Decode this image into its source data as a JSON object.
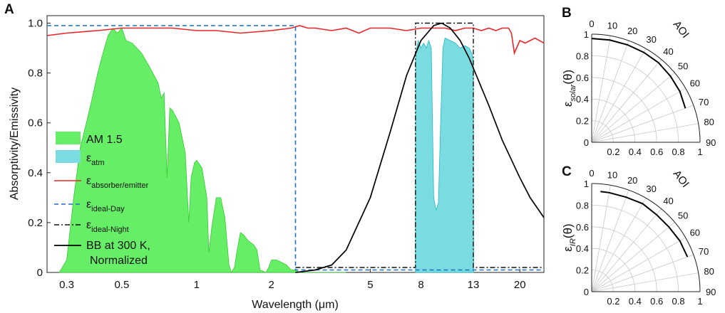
{
  "colors": {
    "am15": "#66ee66",
    "am15_edge": "#33cc33",
    "atm": "#7adbe0",
    "atm_edge": "#22bbc4",
    "absorber": "#e8262a",
    "ideal_day": "#1f6fbf",
    "ideal_night": "#111111",
    "bb": "#000000"
  },
  "chart_data": [
    {
      "panel": "A",
      "type": "area",
      "xscale": "log",
      "xlabel": "Wavelength (μm)",
      "ylabel": "Absorptivity/Emissivity",
      "xlim": [
        0.25,
        25
      ],
      "ylim": [
        0,
        1.03
      ],
      "xticks": [
        0.3,
        0.5,
        1,
        2,
        5,
        8,
        13,
        20
      ],
      "xticklabels": [
        "0.3",
        "0.5",
        "1",
        "2",
        "5",
        "8",
        "13",
        "20"
      ],
      "yticks": [
        0,
        0.2,
        0.4,
        0.6,
        0.8,
        1.0
      ],
      "yticklabels": [
        "0",
        "0.2",
        "0.4",
        "0.6",
        "0.8",
        "1.0"
      ],
      "legend": {
        "position": "left",
        "entries": [
          {
            "main": "AM 1.5",
            "sub": ""
          },
          {
            "main": "ε",
            "sub": "atm"
          },
          {
            "main": "ε",
            "sub": "absorber/emitter"
          },
          {
            "main": "ε",
            "sub": "ideal-Day"
          },
          {
            "main": "ε",
            "sub": "ideal-Night"
          },
          {
            "main": "BB at 300 K,",
            "sub": "",
            "line2": "Normalized"
          }
        ]
      },
      "series": [
        {
          "name": "AM 1.5",
          "kind": "area",
          "x": [
            0.28,
            0.3,
            0.32,
            0.34,
            0.36,
            0.38,
            0.4,
            0.42,
            0.44,
            0.46,
            0.48,
            0.5,
            0.52,
            0.55,
            0.6,
            0.65,
            0.7,
            0.72,
            0.74,
            0.76,
            0.78,
            0.8,
            0.85,
            0.9,
            0.93,
            0.95,
            0.98,
            1.0,
            1.05,
            1.1,
            1.12,
            1.15,
            1.2,
            1.25,
            1.3,
            1.35,
            1.38,
            1.42,
            1.45,
            1.5,
            1.55,
            1.6,
            1.65,
            1.7,
            1.75,
            1.8,
            1.9,
            1.95,
            2.0,
            2.1,
            2.2,
            2.3,
            2.4,
            2.5,
            2.6,
            3.0,
            3.5,
            4.0
          ],
          "values": [
            0.0,
            0.05,
            0.3,
            0.5,
            0.6,
            0.7,
            0.8,
            0.88,
            0.95,
            0.98,
            0.96,
            0.98,
            0.93,
            0.92,
            0.88,
            0.82,
            0.76,
            0.7,
            0.72,
            0.38,
            0.66,
            0.65,
            0.6,
            0.48,
            0.2,
            0.38,
            0.44,
            0.45,
            0.42,
            0.3,
            0.08,
            0.18,
            0.3,
            0.3,
            0.22,
            0.03,
            0.0,
            0.02,
            0.08,
            0.16,
            0.15,
            0.13,
            0.12,
            0.11,
            0.09,
            0.01,
            0.0,
            0.02,
            0.05,
            0.05,
            0.04,
            0.03,
            0.01,
            0.01,
            0.0,
            0.0,
            0.0,
            0.0
          ]
        },
        {
          "name": "εatm",
          "kind": "area",
          "x": [
            7.6,
            7.62,
            7.8,
            8.0,
            8.2,
            8.4,
            8.6,
            8.8,
            8.9,
            9.0,
            9.2,
            9.4,
            9.6,
            9.8,
            10.0,
            10.5,
            11.0,
            11.5,
            12.0,
            12.5,
            12.8,
            13.0,
            13.02
          ],
          "values": [
            0.0,
            0.88,
            0.93,
            0.9,
            0.92,
            0.9,
            0.93,
            0.9,
            0.6,
            0.3,
            0.25,
            0.28,
            0.6,
            0.9,
            0.94,
            0.93,
            0.92,
            0.9,
            0.91,
            0.9,
            0.88,
            0.85,
            0.0
          ]
        },
        {
          "name": "εabsorber/emitter",
          "kind": "line",
          "x": [
            0.25,
            0.3,
            0.4,
            0.5,
            0.6,
            0.8,
            1.0,
            1.2,
            1.5,
            2.0,
            2.4,
            2.6,
            2.8,
            3.0,
            3.5,
            4.0,
            4.5,
            5.0,
            6.0,
            7.0,
            8.0,
            9.0,
            10.0,
            11.0,
            12.0,
            13.0,
            14.0,
            15.0,
            16.0,
            17.0,
            18.0,
            18.5,
            19.0,
            20.0,
            21.0,
            22.0,
            23.0,
            25.0
          ],
          "values": [
            0.95,
            0.96,
            0.97,
            0.98,
            0.98,
            0.98,
            0.97,
            0.97,
            0.96,
            0.97,
            0.98,
            0.99,
            0.98,
            0.98,
            0.97,
            0.98,
            0.96,
            0.98,
            0.98,
            0.97,
            0.98,
            0.98,
            0.98,
            0.97,
            0.98,
            0.98,
            0.97,
            0.98,
            0.97,
            0.98,
            0.98,
            0.96,
            0.88,
            0.93,
            0.92,
            0.93,
            0.94,
            0.92
          ]
        },
        {
          "name": "εideal-Day",
          "kind": "dashed",
          "x": [
            0.25,
            2.5,
            2.5,
            25.0
          ],
          "values": [
            0.99,
            0.99,
            0.01,
            0.01
          ]
        },
        {
          "name": "εideal-Night",
          "kind": "dashdot",
          "x": [
            2.5,
            7.6,
            7.6,
            13.0,
            13.0,
            25.0
          ],
          "values": [
            0.02,
            0.02,
            1.0,
            1.0,
            0.02,
            0.02
          ]
        },
        {
          "name": "BB at 300 K, Normalized",
          "kind": "line",
          "x": [
            2.5,
            3.0,
            3.5,
            4.0,
            5.0,
            6.0,
            7.0,
            8.0,
            9.0,
            9.7,
            10.5,
            11.5,
            12.5,
            13.5,
            15.0,
            17.0,
            20.0,
            22.0,
            25.0
          ],
          "values": [
            0.0,
            0.01,
            0.03,
            0.09,
            0.3,
            0.56,
            0.79,
            0.93,
            0.99,
            1.0,
            0.98,
            0.93,
            0.86,
            0.78,
            0.67,
            0.53,
            0.38,
            0.3,
            0.22
          ]
        }
      ]
    },
    {
      "panel": "B",
      "type": "line",
      "polar": true,
      "ylabel": "ε",
      "ylabel_sub": "solar",
      "ylabel_suffix": "(θ)",
      "theta_label": "AOI",
      "theta_ticks": [
        0,
        10,
        20,
        30,
        40,
        50,
        60,
        70,
        80,
        90
      ],
      "r_ticks": [
        0.2,
        0.4,
        0.6,
        0.8,
        1
      ],
      "r_ticklabels": [
        "0.2",
        "0.4",
        "0.6",
        "0.8",
        "1"
      ],
      "left_ticks": [
        "1",
        "0.8",
        "0.6",
        "0.4",
        "0.2",
        "0"
      ],
      "series": [
        {
          "name": "εsolar",
          "angles": [
            0,
            10,
            20,
            30,
            40,
            50,
            60,
            70
          ],
          "values": [
            0.96,
            0.96,
            0.96,
            0.96,
            0.96,
            0.95,
            0.94,
            0.92
          ]
        }
      ]
    },
    {
      "panel": "C",
      "type": "line",
      "polar": true,
      "ylabel": "ε",
      "ylabel_sub": "IR",
      "ylabel_suffix": "(θ)",
      "theta_label": "AOI",
      "theta_ticks": [
        0,
        10,
        20,
        30,
        40,
        50,
        60,
        70,
        80,
        90
      ],
      "r_ticks": [
        0.2,
        0.4,
        0.6,
        0.8,
        1
      ],
      "r_ticklabels": [
        "0.2",
        "0.4",
        "0.6",
        "0.8",
        "1"
      ],
      "left_ticks": [
        "1",
        "0.8",
        "0.6",
        "0.4",
        "0.2",
        "0"
      ],
      "series": [
        {
          "name": "εIR",
          "angles": [
            5,
            10,
            20,
            30,
            40,
            50,
            60,
            70
          ],
          "values": [
            0.93,
            0.93,
            0.93,
            0.94,
            0.93,
            0.93,
            0.94,
            0.94
          ]
        }
      ]
    }
  ]
}
